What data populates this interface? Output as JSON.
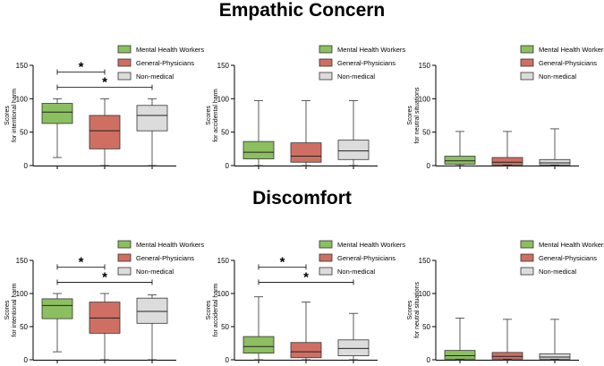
{
  "colors": {
    "mental_health": "#8cbf5f",
    "general_physicians": "#cf6f63",
    "non_medical": "#dcdcdc",
    "axis": "#000000"
  },
  "sections": [
    {
      "title": "Empathic Concern"
    },
    {
      "title": "Discomfort"
    }
  ],
  "chart_data": [
    {
      "type": "box",
      "section": "Empathic Concern",
      "ylabel": [
        "Scores",
        "for intentional harm"
      ],
      "ylim": [
        0,
        150
      ],
      "yticks": [
        0,
        50,
        100,
        150
      ],
      "legend": [
        "Mental Health Workers",
        "General-Physicians",
        "Non-medical"
      ],
      "boxes": [
        {
          "group": "Mental Health Workers",
          "min": 12,
          "q1": 63,
          "median": 80,
          "q3": 93,
          "max": 100
        },
        {
          "group": "General-Physicians",
          "min": 0,
          "q1": 25,
          "median": 52,
          "q3": 75,
          "max": 100
        },
        {
          "group": "Non-medical",
          "min": 0,
          "q1": 52,
          "median": 75,
          "q3": 90,
          "max": 100
        }
      ],
      "significance": [
        {
          "from": 0,
          "to": 1,
          "label": "*",
          "y": 140
        },
        {
          "from": 0,
          "to": 2,
          "label": "*",
          "y": 117
        }
      ]
    },
    {
      "type": "box",
      "section": "Empathic Concern",
      "ylabel": [
        "Scores",
        "for accidental harm"
      ],
      "ylim": [
        0,
        150
      ],
      "yticks": [
        0,
        50,
        100,
        150
      ],
      "legend": [
        "Mental Health Workers",
        "General-Physicians",
        "Non-medical"
      ],
      "boxes": [
        {
          "group": "Mental Health Workers",
          "min": 0,
          "q1": 10,
          "median": 20,
          "q3": 36,
          "max": 97
        },
        {
          "group": "General-Physicians",
          "min": 0,
          "q1": 5,
          "median": 14,
          "q3": 34,
          "max": 97
        },
        {
          "group": "Non-medical",
          "min": 0,
          "q1": 9,
          "median": 22,
          "q3": 38,
          "max": 97
        }
      ],
      "significance": []
    },
    {
      "type": "box",
      "section": "Empathic Concern",
      "ylabel": [
        "Scores",
        "for neutral situations"
      ],
      "ylim": [
        0,
        150
      ],
      "yticks": [
        0,
        50,
        100,
        150
      ],
      "legend": [
        "Mental Health Workers",
        "General-Physicians",
        "Non-medical"
      ],
      "boxes": [
        {
          "group": "Mental Health Workers",
          "min": 0,
          "q1": 2,
          "median": 7,
          "q3": 14,
          "max": 51
        },
        {
          "group": "General-Physicians",
          "min": 0,
          "q1": 1,
          "median": 5,
          "q3": 12,
          "max": 51
        },
        {
          "group": "Non-medical",
          "min": 0,
          "q1": 1,
          "median": 4,
          "q3": 9,
          "max": 55
        }
      ],
      "significance": []
    },
    {
      "type": "box",
      "section": "Discomfort",
      "ylabel": [
        "Scores",
        "for intentional harm"
      ],
      "ylim": [
        0,
        150
      ],
      "yticks": [
        0,
        50,
        100,
        150
      ],
      "legend": [
        "Mental Health Workers",
        "General-Physicians",
        "Non-medical"
      ],
      "boxes": [
        {
          "group": "Mental Health Workers",
          "min": 12,
          "q1": 62,
          "median": 82,
          "q3": 92,
          "max": 100
        },
        {
          "group": "General-Physicians",
          "min": 0,
          "q1": 40,
          "median": 63,
          "q3": 87,
          "max": 100
        },
        {
          "group": "Non-medical",
          "min": 0,
          "q1": 55,
          "median": 73,
          "q3": 93,
          "max": 98
        }
      ],
      "significance": [
        {
          "from": 0,
          "to": 1,
          "label": "*",
          "y": 140
        },
        {
          "from": 0,
          "to": 2,
          "label": "*",
          "y": 117
        }
      ]
    },
    {
      "type": "box",
      "section": "Discomfort",
      "ylabel": [
        "Scores",
        "for accidental harm"
      ],
      "ylim": [
        0,
        150
      ],
      "yticks": [
        0,
        50,
        100,
        150
      ],
      "legend": [
        "Mental Health Workers",
        "General-Physicians",
        "Non-medical"
      ],
      "boxes": [
        {
          "group": "Mental Health Workers",
          "min": 0,
          "q1": 10,
          "median": 20,
          "q3": 35,
          "max": 95
        },
        {
          "group": "General-Physicians",
          "min": 0,
          "q1": 3,
          "median": 12,
          "q3": 26,
          "max": 87
        },
        {
          "group": "Non-medical",
          "min": 0,
          "q1": 6,
          "median": 17,
          "q3": 30,
          "max": 70
        }
      ],
      "significance": [
        {
          "from": 0,
          "to": 1,
          "label": "*",
          "y": 140
        },
        {
          "from": 0,
          "to": 2,
          "label": "*",
          "y": 117
        }
      ]
    },
    {
      "type": "box",
      "section": "Discomfort",
      "ylabel": [
        "Scores",
        "for neutral situations"
      ],
      "ylim": [
        0,
        150
      ],
      "yticks": [
        0,
        50,
        100,
        150
      ],
      "legend": [
        "Mental Health Workers",
        "General-Physicians",
        "Non-medical"
      ],
      "boxes": [
        {
          "group": "Mental Health Workers",
          "min": 0,
          "q1": 1,
          "median": 6,
          "q3": 14,
          "max": 63
        },
        {
          "group": "General-Physicians",
          "min": 0,
          "q1": 1,
          "median": 5,
          "q3": 11,
          "max": 61
        },
        {
          "group": "Non-medical",
          "min": 0,
          "q1": 1,
          "median": 4,
          "q3": 9,
          "max": 61
        }
      ],
      "significance": []
    }
  ]
}
